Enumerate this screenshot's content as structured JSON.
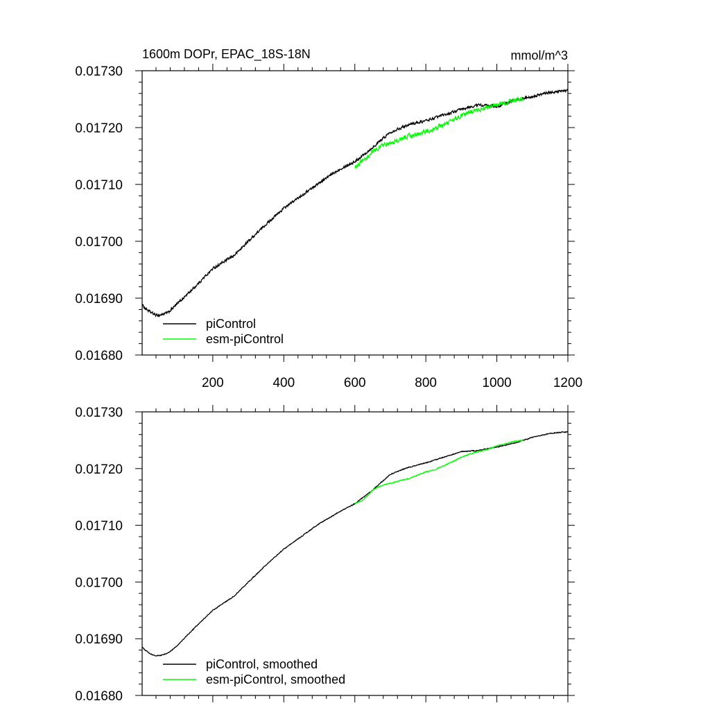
{
  "chart_data": [
    {
      "type": "line",
      "title_left": "1600m DOPr, EPAC_18S-18N",
      "title_right": "mmol/m^3",
      "xlabel": "",
      "ylabel": "",
      "xlim": [
        1,
        1200
      ],
      "ylim": [
        0.0168,
        0.0173
      ],
      "x_ticks": [
        200,
        400,
        600,
        800,
        1000,
        1200
      ],
      "y_ticks": [
        "0.01680",
        "0.01690",
        "0.01700",
        "0.01710",
        "0.01720",
        "0.01730"
      ],
      "grid": false,
      "legend_position": "bottom-left",
      "series": [
        {
          "name": "piControl",
          "color": "#000000",
          "noise": 2e-06,
          "x": [
            1,
            10,
            25,
            40,
            50,
            60,
            75,
            100,
            150,
            200,
            260,
            300,
            350,
            400,
            460,
            500,
            560,
            600,
            650,
            700,
            750,
            800,
            850,
            900,
            950,
            1000,
            1050,
            1100,
            1150,
            1200
          ],
          "values": [
            0.016888,
            0.016882,
            0.016875,
            0.01687,
            0.01687,
            0.016872,
            0.016875,
            0.01689,
            0.01692,
            0.016952,
            0.016975,
            0.017,
            0.01703,
            0.017058,
            0.017085,
            0.017103,
            0.017128,
            0.01714,
            0.017165,
            0.017192,
            0.017205,
            0.017212,
            0.017222,
            0.017232,
            0.01724,
            0.017237,
            0.017248,
            0.017255,
            0.017262,
            0.017265
          ]
        },
        {
          "name": "esm-piControl",
          "color": "#00ff00",
          "noise": 3.5e-06,
          "x": [
            600,
            625,
            650,
            675,
            700,
            725,
            750,
            775,
            800,
            825,
            850,
            875,
            900,
            925,
            950,
            975,
            1000,
            1025,
            1050,
            1075
          ],
          "values": [
            0.01713,
            0.017142,
            0.017158,
            0.017168,
            0.017172,
            0.017178,
            0.017185,
            0.017188,
            0.017193,
            0.017198,
            0.017205,
            0.017212,
            0.01722,
            0.017228,
            0.017232,
            0.017236,
            0.01724,
            0.017244,
            0.017248,
            0.017252
          ]
        }
      ]
    },
    {
      "type": "line",
      "xlabel": "",
      "ylabel": "",
      "xlim": [
        1,
        1200
      ],
      "ylim": [
        0.0168,
        0.0173
      ],
      "y_ticks": [
        "0.01680",
        "0.01690",
        "0.01700",
        "0.01710",
        "0.01720",
        "0.01730"
      ],
      "grid": false,
      "legend_position": "bottom-left",
      "series": [
        {
          "name": "piControl, smoothed",
          "color": "#000000",
          "noise": 7e-07,
          "x": [
            1,
            10,
            25,
            40,
            50,
            60,
            75,
            100,
            150,
            200,
            260,
            300,
            350,
            400,
            460,
            500,
            560,
            600,
            650,
            700,
            750,
            800,
            850,
            900,
            950,
            1000,
            1050,
            1100,
            1150,
            1200
          ],
          "values": [
            0.016885,
            0.01688,
            0.016873,
            0.01687,
            0.01687,
            0.016872,
            0.016875,
            0.016888,
            0.01692,
            0.01695,
            0.016975,
            0.017,
            0.01703,
            0.017058,
            0.017085,
            0.017103,
            0.017125,
            0.017138,
            0.017162,
            0.01719,
            0.017202,
            0.01721,
            0.01722,
            0.01723,
            0.017232,
            0.017238,
            0.017245,
            0.017255,
            0.017262,
            0.017265
          ]
        },
        {
          "name": "esm-piControl, smoothed",
          "color": "#00ff00",
          "noise": 8e-07,
          "x": [
            600,
            625,
            650,
            675,
            700,
            725,
            750,
            775,
            800,
            825,
            850,
            875,
            900,
            925,
            950,
            975,
            1000,
            1025,
            1050,
            1075
          ],
          "values": [
            0.017138,
            0.017145,
            0.017162,
            0.01717,
            0.017174,
            0.017178,
            0.017182,
            0.017188,
            0.017194,
            0.017198,
            0.017205,
            0.017212,
            0.01722,
            0.017226,
            0.01723,
            0.017234,
            0.01724,
            0.017244,
            0.017248,
            0.01725
          ]
        }
      ]
    }
  ]
}
